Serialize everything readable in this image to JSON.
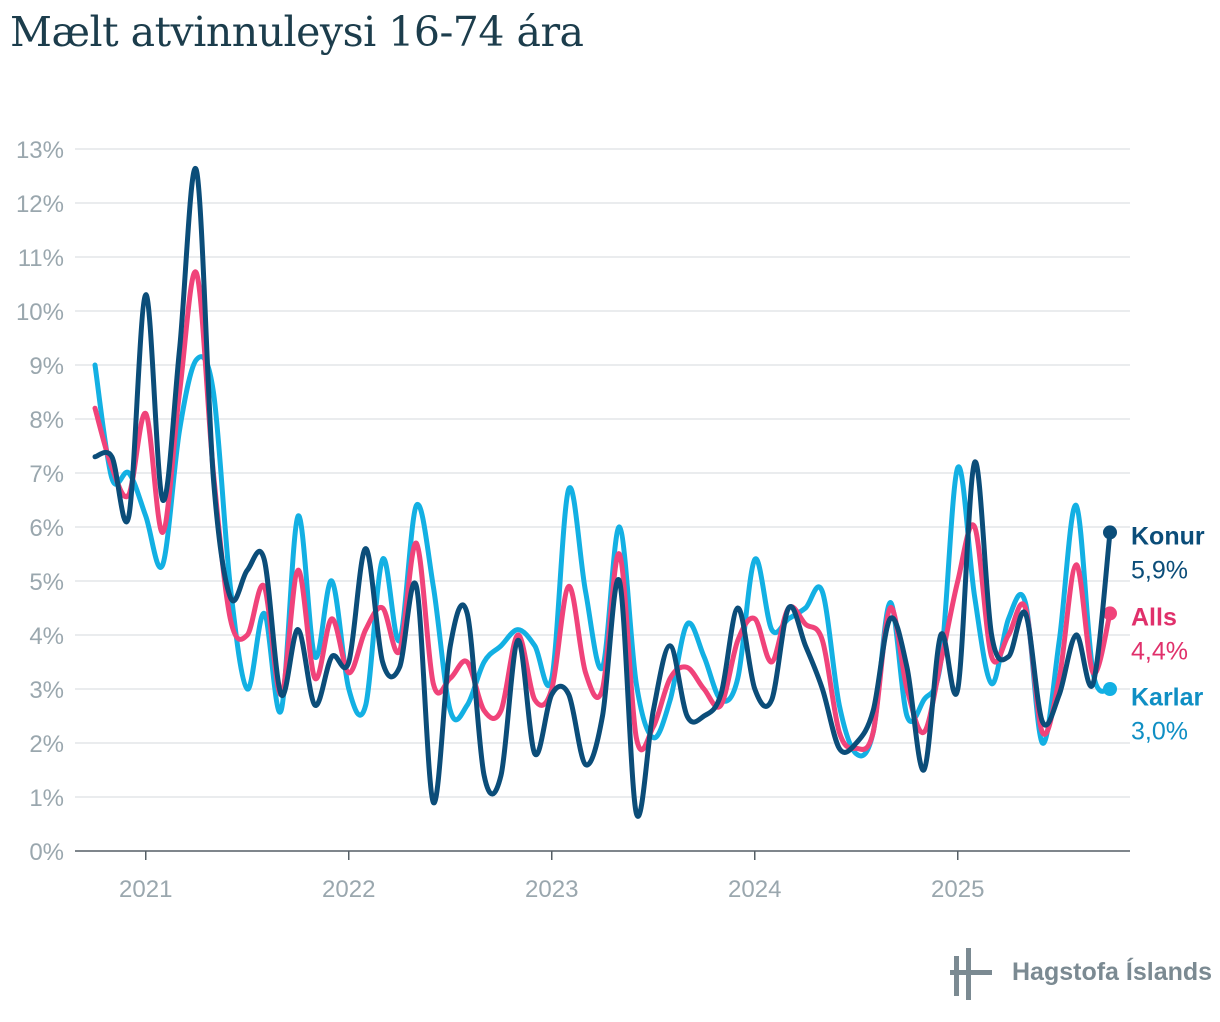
{
  "chart_data": {
    "type": "line",
    "title": "Mælt atvinnuleysi 16-74 ára",
    "xlabel": "",
    "ylabel": "",
    "ylim": [
      0,
      13
    ],
    "xlim": [
      "2020-10",
      "2025-10"
    ],
    "y_ticks": [
      "0%",
      "1%",
      "2%",
      "3%",
      "4%",
      "5%",
      "6%",
      "7%",
      "8%",
      "9%",
      "10%",
      "11%",
      "12%",
      "13%"
    ],
    "x_ticks": [
      {
        "date": "2021-01",
        "label": "2021"
      },
      {
        "date": "2022-01",
        "label": "2022"
      },
      {
        "date": "2023-01",
        "label": "2023"
      },
      {
        "date": "2024-01",
        "label": "2024"
      },
      {
        "date": "2025-01",
        "label": "2025"
      }
    ],
    "grid": true,
    "x": [
      "2020-10",
      "2020-11",
      "2020-12",
      "2021-01",
      "2021-02",
      "2021-03",
      "2021-04",
      "2021-05",
      "2021-06",
      "2021-07",
      "2021-08",
      "2021-09",
      "2021-10",
      "2021-11",
      "2021-12",
      "2022-01",
      "2022-02",
      "2022-03",
      "2022-04",
      "2022-05",
      "2022-06",
      "2022-07",
      "2022-08",
      "2022-09",
      "2022-10",
      "2022-11",
      "2022-12",
      "2023-01",
      "2023-02",
      "2023-03",
      "2023-04",
      "2023-05",
      "2023-06",
      "2023-07",
      "2023-08",
      "2023-09",
      "2023-10",
      "2023-11",
      "2023-12",
      "2024-01",
      "2024-02",
      "2024-03",
      "2024-04",
      "2024-05",
      "2024-06",
      "2024-07",
      "2024-08",
      "2024-09",
      "2024-10",
      "2024-11",
      "2024-12",
      "2025-01",
      "2025-02",
      "2025-03",
      "2025-04",
      "2025-05",
      "2025-06",
      "2025-07",
      "2025-08",
      "2025-09",
      "2025-10"
    ],
    "series": [
      {
        "name": "Karlar",
        "color": "#13b0e3",
        "values": [
          9.0,
          6.9,
          7.0,
          6.2,
          5.3,
          7.8,
          9.1,
          8.5,
          4.9,
          3.0,
          4.4,
          2.6,
          6.2,
          3.6,
          5.0,
          3.0,
          2.7,
          5.4,
          3.9,
          6.4,
          4.9,
          2.6,
          2.7,
          3.5,
          3.8,
          4.1,
          3.8,
          3.2,
          6.7,
          4.8,
          3.4,
          6.0,
          3.1,
          2.1,
          2.8,
          4.2,
          3.6,
          2.8,
          3.2,
          5.4,
          4.1,
          4.3,
          4.5,
          4.8,
          2.7,
          1.8,
          2.2,
          4.6,
          2.5,
          2.8,
          3.5,
          7.1,
          4.7,
          3.1,
          4.3,
          4.6,
          2.0,
          3.9,
          6.4,
          3.3,
          3.0
        ],
        "end_label": "Karlar",
        "end_value": "3,0%"
      },
      {
        "name": "Alls",
        "color": "#f0437a",
        "values": [
          8.2,
          7.1,
          6.6,
          8.1,
          5.9,
          8.5,
          10.7,
          7.0,
          4.3,
          4.0,
          4.9,
          2.9,
          5.2,
          3.2,
          4.3,
          3.3,
          4.1,
          4.5,
          3.7,
          5.7,
          3.1,
          3.2,
          3.5,
          2.6,
          2.6,
          4.0,
          2.8,
          3.0,
          4.9,
          3.3,
          3.0,
          5.5,
          2.1,
          2.3,
          3.2,
          3.4,
          3.0,
          2.7,
          3.9,
          4.3,
          3.5,
          4.5,
          4.2,
          3.9,
          2.2,
          1.9,
          2.2,
          4.5,
          3.0,
          2.2,
          3.5,
          5.0,
          6.0,
          3.6,
          4.0,
          4.5,
          2.2,
          3.2,
          5.3,
          3.3,
          4.4
        ],
        "end_label": "Alls",
        "end_value": "4,4%"
      },
      {
        "name": "Konur",
        "color": "#0b4d79",
        "values": [
          7.3,
          7.3,
          6.2,
          10.3,
          6.5,
          9.3,
          12.6,
          6.9,
          4.7,
          5.2,
          5.4,
          2.9,
          4.1,
          2.7,
          3.6,
          3.5,
          5.6,
          3.5,
          3.4,
          4.9,
          0.9,
          3.8,
          4.4,
          1.4,
          1.4,
          3.9,
          1.8,
          2.9,
          2.9,
          1.6,
          2.5,
          5.0,
          0.7,
          2.6,
          3.8,
          2.5,
          2.5,
          2.9,
          4.5,
          3.0,
          2.8,
          4.5,
          3.8,
          3.0,
          1.9,
          2.0,
          2.6,
          4.3,
          3.4,
          1.5,
          4.0,
          3.0,
          7.2,
          4.0,
          3.6,
          4.4,
          2.4,
          2.9,
          4.0,
          3.1,
          5.9
        ],
        "end_label": "Konur",
        "end_value": "5,9%"
      }
    ]
  },
  "footer": {
    "logo_text": "Hagstofa Íslands",
    "logo_icon": "hagstofa-logo-icon"
  }
}
